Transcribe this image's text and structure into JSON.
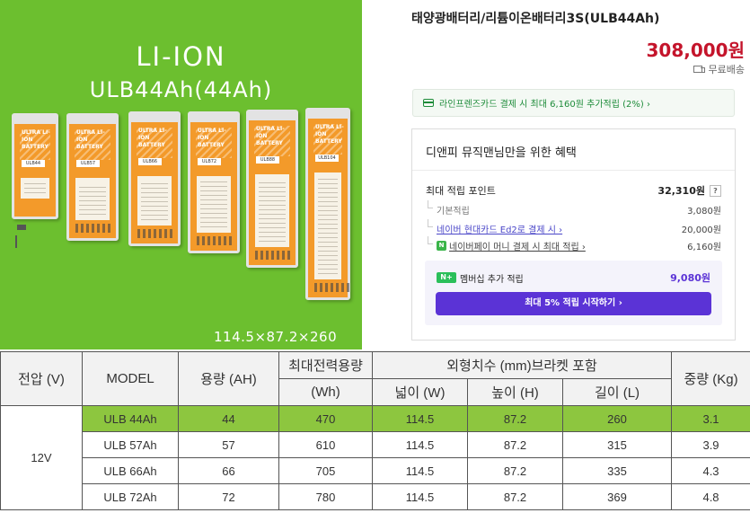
{
  "hero": {
    "title_line1": "LI-ION",
    "title_line2": "ULB44Ah(44Ah)",
    "dimensions": "114.5×87.2×260",
    "battery_brand": "ULTRA LI-ION BATTERY",
    "battery_models": [
      "ULB44",
      "ULB57",
      "ULB66",
      "ULB72",
      "ULB88",
      "ULB104"
    ]
  },
  "product": {
    "name": "태양광배터리/리튬이온배터리3S(ULB44Ah)",
    "price": "308,000원",
    "shipping": "무료배송"
  },
  "card_banner": {
    "text": "라인프렌즈카드 결제 시 최대 6,160원 추가적립 (2%) ›"
  },
  "benefits": {
    "title": "디앤피 뮤직맨님만을 위한 혜택",
    "max_points_label": "최대 적립 포인트",
    "max_points_value": "32,310원",
    "help": "?",
    "items": [
      {
        "label": "기본적립",
        "value": "3,080원"
      },
      {
        "label": "네이버 현대카드 Ed2로 결제 시 ›",
        "value": "20,000원"
      },
      {
        "label": "네이버페이 머니 결제 시 최대 적립 ›",
        "value": "6,160원"
      }
    ],
    "npay_badge": "N",
    "member_badge": "N+",
    "member_label": "멤버십 추가 적립",
    "member_value": "9,080원",
    "member_button": "최대 5% 적립 시작하기 ›"
  },
  "spec_table": {
    "headers": {
      "voltage": "전압 (V)",
      "model": "MODEL",
      "capacity": "용량 (AH)",
      "max_power_line1": "최대전력용량",
      "max_power_line2": "(Wh)",
      "dims": "외형치수 (mm)브라켓 포함",
      "width": "넓이 (W)",
      "height": "높이 (H)",
      "length": "길이 (L)",
      "weight": "중량 (Kg)"
    },
    "voltage": "12V",
    "rows": [
      {
        "model": "ULB 44Ah",
        "capacity": "44",
        "power": "470",
        "width": "114.5",
        "height": "87.2",
        "length": "260",
        "weight": "3.1"
      },
      {
        "model": "ULB 57Ah",
        "capacity": "57",
        "power": "610",
        "width": "114.5",
        "height": "87.2",
        "length": "315",
        "weight": "3.9"
      },
      {
        "model": "ULB 66Ah",
        "capacity": "66",
        "power": "705",
        "width": "114.5",
        "height": "87.2",
        "length": "335",
        "weight": "4.3"
      },
      {
        "model": "ULB 72Ah",
        "capacity": "72",
        "power": "780",
        "width": "114.5",
        "height": "87.2",
        "length": "369",
        "weight": "4.8"
      }
    ]
  },
  "colors": {
    "price_red": "#c4142b",
    "accent_purple": "#5b33d6",
    "highlight_green": "#8dc63f",
    "hero_green": "#6cbf2f",
    "battery_orange": "#f39a2a"
  }
}
